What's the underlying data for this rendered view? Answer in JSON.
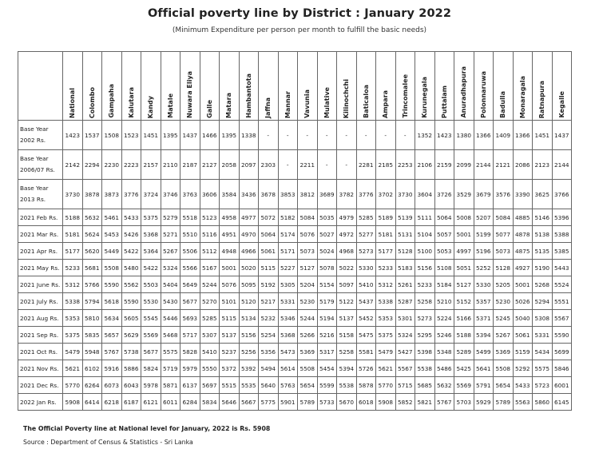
{
  "title": "Official poverty line by District : January 2022",
  "subtitle": "(Minimum Expenditure per person per month to fulfill the basic needs)",
  "table": {
    "columns": [
      "National",
      "Colombo",
      "Gampaha",
      "Kalutara",
      "Kandy",
      "Matale",
      "Nuwara Eliya",
      "Galle",
      "Matara",
      "Hambantota",
      "Jaffna",
      "Mannar",
      "Vavunia",
      "Mulative",
      "Kilinochchi",
      "Baticaloa",
      "Ampara",
      "Trincomalee",
      "Kurunegala",
      "Puttalam",
      "Anuradhapura",
      "Polonnaruwa",
      "Badulla",
      "Monaragala",
      "Ratnapura",
      "Kegalle"
    ],
    "rows": [
      {
        "label": "Base Year 2002 Rs.",
        "tall": true,
        "values": [
          "1423",
          "1537",
          "1508",
          "1523",
          "1451",
          "1395",
          "1437",
          "1466",
          "1395",
          "1338",
          "-",
          "-",
          "-",
          "-",
          "-",
          "-",
          "-",
          "-",
          "1352",
          "1423",
          "1380",
          "1366",
          "1409",
          "1366",
          "1451",
          "1437"
        ]
      },
      {
        "label": "Base Year 2006/07 Rs.",
        "tall": true,
        "values": [
          "2142",
          "2294",
          "2230",
          "2223",
          "2157",
          "2110",
          "2187",
          "2127",
          "2058",
          "2097",
          "2303",
          "-",
          "2211",
          "-",
          "-",
          "2281",
          "2185",
          "2253",
          "2106",
          "2159",
          "2099",
          "2144",
          "2121",
          "2086",
          "2123",
          "2144"
        ]
      },
      {
        "label": "Base Year 2013 Rs.",
        "tall": true,
        "values": [
          "3730",
          "3878",
          "3873",
          "3776",
          "3724",
          "3746",
          "3763",
          "3606",
          "3584",
          "3436",
          "3678",
          "3853",
          "3812",
          "3689",
          "3782",
          "3776",
          "3702",
          "3730",
          "3604",
          "3726",
          "3529",
          "3679",
          "3576",
          "3390",
          "3625",
          "3766"
        ]
      },
      {
        "label": "2021 Feb Rs.",
        "tall": false,
        "values": [
          "5188",
          "5632",
          "5461",
          "5433",
          "5375",
          "5279",
          "5518",
          "5123",
          "4958",
          "4977",
          "5072",
          "5182",
          "5084",
          "5035",
          "4979",
          "5285",
          "5189",
          "5139",
          "5111",
          "5064",
          "5008",
          "5207",
          "5084",
          "4885",
          "5146",
          "5396"
        ]
      },
      {
        "label": "2021 Mar Rs.",
        "tall": false,
        "values": [
          "5181",
          "5624",
          "5453",
          "5426",
          "5368",
          "5271",
          "5510",
          "5116",
          "4951",
          "4970",
          "5064",
          "5174",
          "5076",
          "5027",
          "4972",
          "5277",
          "5181",
          "5131",
          "5104",
          "5057",
          "5001",
          "5199",
          "5077",
          "4878",
          "5138",
          "5388"
        ]
      },
      {
        "label": "2021 Apr Rs.",
        "tall": false,
        "values": [
          "5177",
          "5620",
          "5449",
          "5422",
          "5364",
          "5267",
          "5506",
          "5112",
          "4948",
          "4966",
          "5061",
          "5171",
          "5073",
          "5024",
          "4968",
          "5273",
          "5177",
          "5128",
          "5100",
          "5053",
          "4997",
          "5196",
          "5073",
          "4875",
          "5135",
          "5385"
        ]
      },
      {
        "label": "2021 May Rs.",
        "tall": false,
        "values": [
          "5233",
          "5681",
          "5508",
          "5480",
          "5422",
          "5324",
          "5566",
          "5167",
          "5001",
          "5020",
          "5115",
          "5227",
          "5127",
          "5078",
          "5022",
          "5330",
          "5233",
          "5183",
          "5156",
          "5108",
          "5051",
          "5252",
          "5128",
          "4927",
          "5190",
          "5443"
        ]
      },
      {
        "label": "2021 June Rs.",
        "tall": false,
        "values": [
          "5312",
          "5766",
          "5590",
          "5562",
          "5503",
          "5404",
          "5649",
          "5244",
          "5076",
          "5095",
          "5192",
          "5305",
          "5204",
          "5154",
          "5097",
          "5410",
          "5312",
          "5261",
          "5233",
          "5184",
          "5127",
          "5330",
          "5205",
          "5001",
          "5268",
          "5524"
        ]
      },
      {
        "label": "2021 July Rs.",
        "tall": false,
        "values": [
          "5338",
          "5794",
          "5618",
          "5590",
          "5530",
          "5430",
          "5677",
          "5270",
          "5101",
          "5120",
          "5217",
          "5331",
          "5230",
          "5179",
          "5122",
          "5437",
          "5338",
          "5287",
          "5258",
          "5210",
          "5152",
          "5357",
          "5230",
          "5026",
          "5294",
          "5551"
        ]
      },
      {
        "label": "2021 Aug Rs.",
        "tall": false,
        "values": [
          "5353",
          "5810",
          "5634",
          "5605",
          "5545",
          "5446",
          "5693",
          "5285",
          "5115",
          "5134",
          "5232",
          "5346",
          "5244",
          "5194",
          "5137",
          "5452",
          "5353",
          "5301",
          "5273",
          "5224",
          "5166",
          "5371",
          "5245",
          "5040",
          "5308",
          "5567"
        ]
      },
      {
        "label": "2021 Sep Rs.",
        "tall": false,
        "values": [
          "5375",
          "5835",
          "5657",
          "5629",
          "5569",
          "5468",
          "5717",
          "5307",
          "5137",
          "5156",
          "5254",
          "5368",
          "5266",
          "5216",
          "5158",
          "5475",
          "5375",
          "5324",
          "5295",
          "5246",
          "5188",
          "5394",
          "5267",
          "5061",
          "5331",
          "5590"
        ]
      },
      {
        "label": "2021 Oct Rs.",
        "tall": false,
        "values": [
          "5479",
          "5948",
          "5767",
          "5738",
          "5677",
          "5575",
          "5828",
          "5410",
          "5237",
          "5256",
          "5356",
          "5473",
          "5369",
          "5317",
          "5258",
          "5581",
          "5479",
          "5427",
          "5398",
          "5348",
          "5289",
          "5499",
          "5369",
          "5159",
          "5434",
          "5699"
        ]
      },
      {
        "label": "2021 Nov Rs.",
        "tall": false,
        "values": [
          "5621",
          "6102",
          "5916",
          "5886",
          "5824",
          "5719",
          "5979",
          "5550",
          "5372",
          "5392",
          "5494",
          "5614",
          "5508",
          "5454",
          "5394",
          "5726",
          "5621",
          "5567",
          "5538",
          "5486",
          "5425",
          "5641",
          "5508",
          "5292",
          "5575",
          "5846"
        ]
      },
      {
        "label": "2021 Dec Rs.",
        "tall": false,
        "values": [
          "5770",
          "6264",
          "6073",
          "6043",
          "5978",
          "5871",
          "6137",
          "5697",
          "5515",
          "5535",
          "5640",
          "5763",
          "5654",
          "5599",
          "5538",
          "5878",
          "5770",
          "5715",
          "5685",
          "5632",
          "5569",
          "5791",
          "5654",
          "5433",
          "5723",
          "6001"
        ]
      },
      {
        "label": "2022 Jan Rs.",
        "tall": false,
        "values": [
          "5908",
          "6414",
          "6218",
          "6187",
          "6121",
          "6011",
          "6284",
          "5834",
          "5646",
          "5667",
          "5775",
          "5901",
          "5789",
          "5733",
          "5670",
          "6018",
          "5908",
          "5852",
          "5821",
          "5767",
          "5703",
          "5929",
          "5789",
          "5563",
          "5860",
          "6145"
        ]
      }
    ]
  },
  "note": "The Official Poverty line at National level for January, 2022 is Rs. 5908",
  "source": "Source : Department of Census & Statistics - Sri Lanka"
}
